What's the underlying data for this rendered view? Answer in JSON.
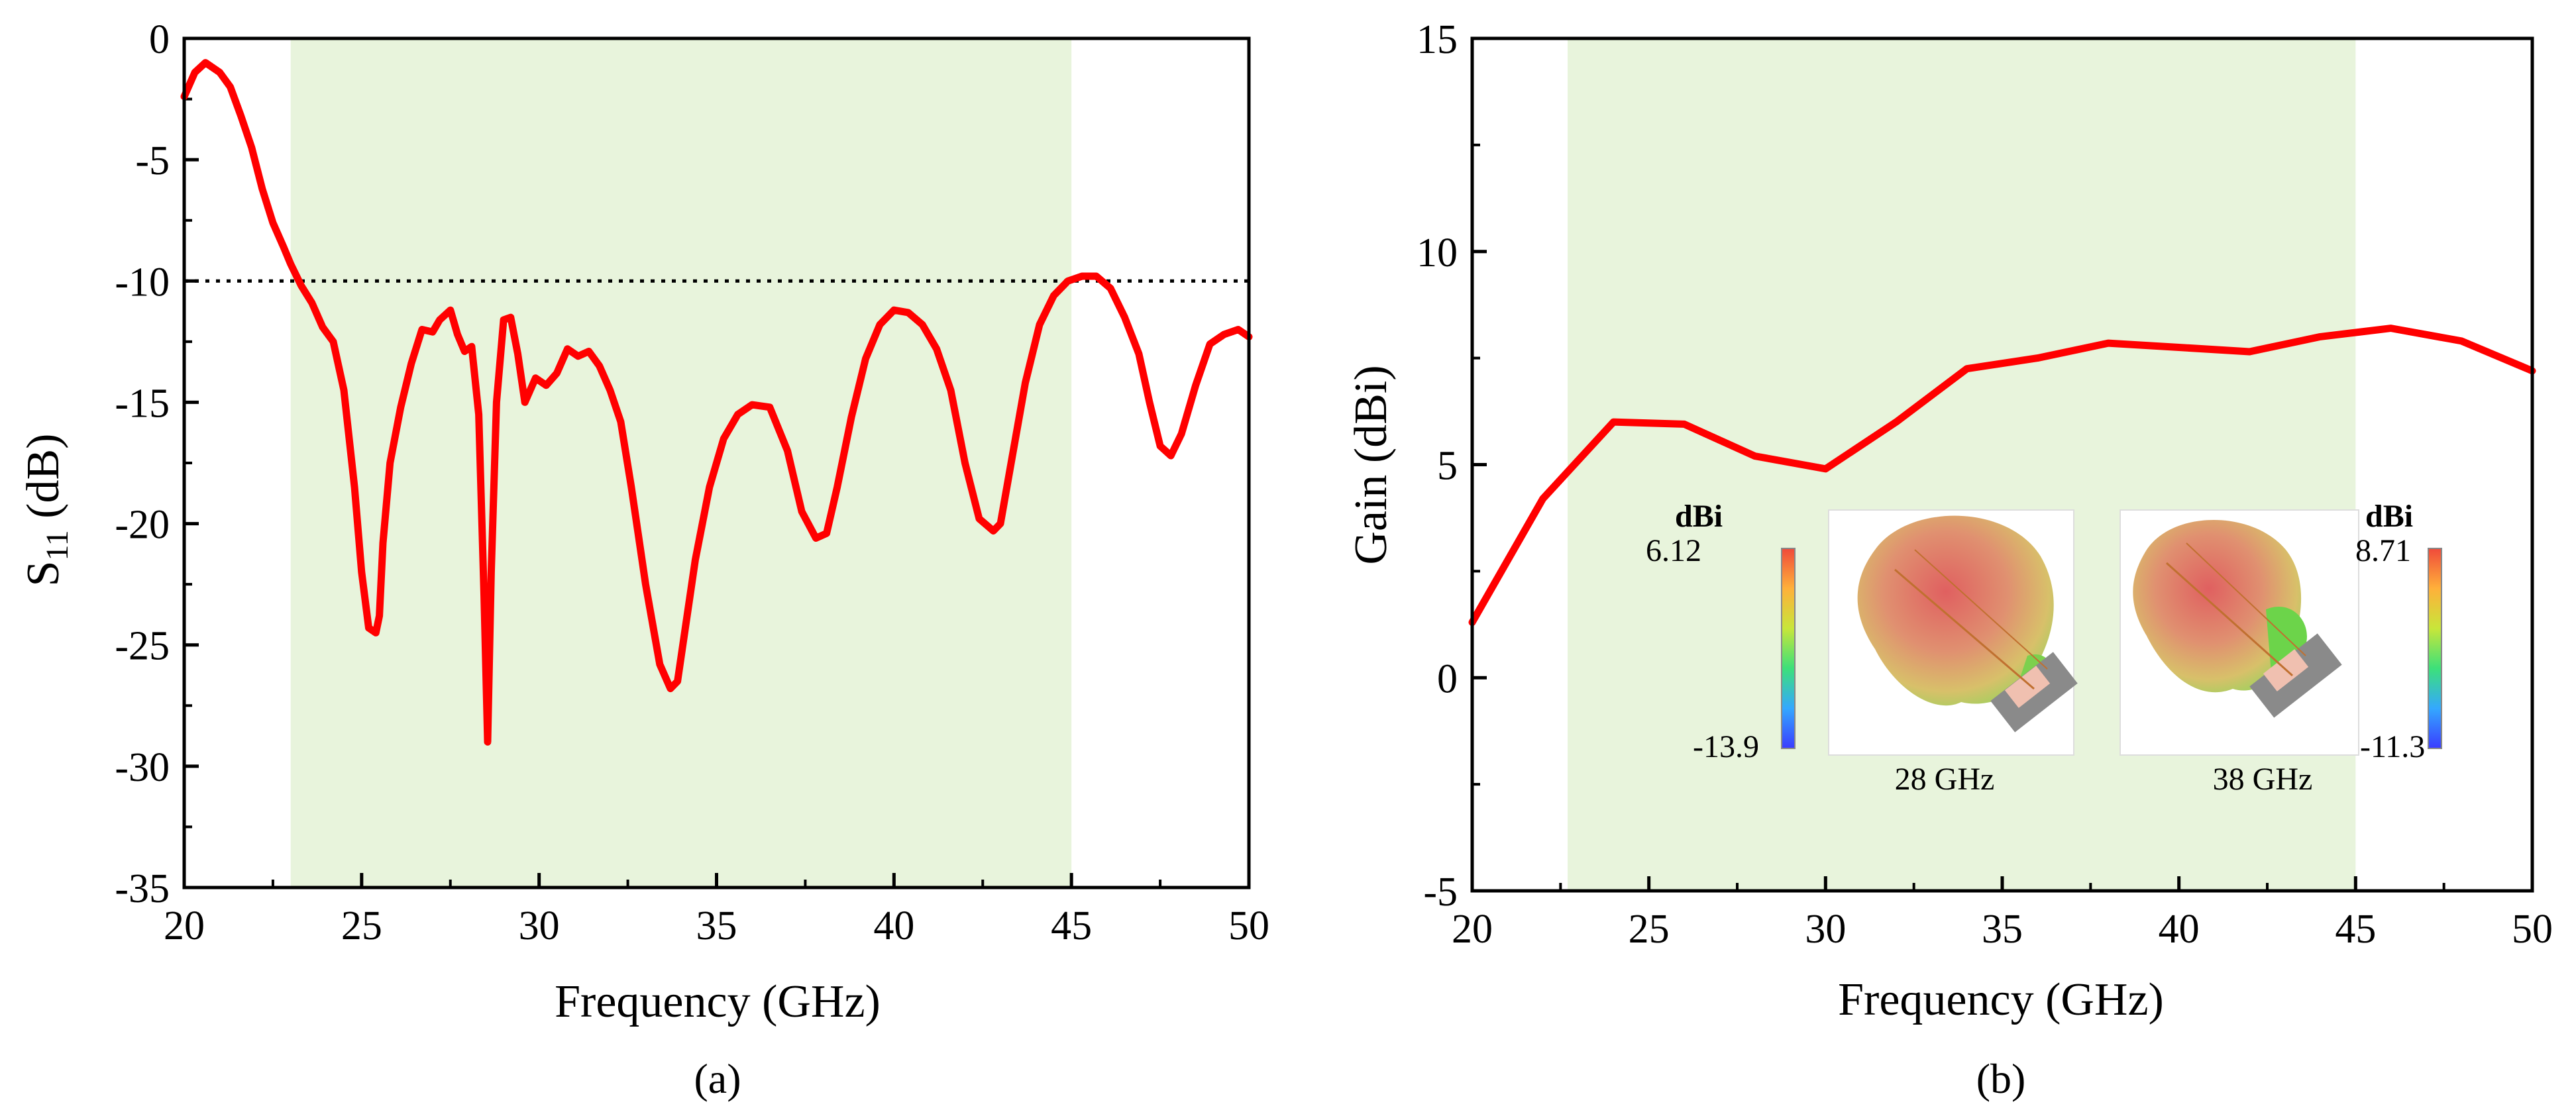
{
  "figure": {
    "panel_a_label": "(a)",
    "panel_b_label": "(b)"
  },
  "chart_data": [
    {
      "type": "line",
      "id": "s11",
      "title": "",
      "xlabel": "Frequency (GHz)",
      "ylabel_main": "S",
      "ylabel_sub": "11",
      "ylabel_unit": " (dB)",
      "xlim": [
        20,
        50
      ],
      "ylim": [
        -35,
        0
      ],
      "xticks": [
        20,
        25,
        30,
        35,
        40,
        45,
        50
      ],
      "xtick_labels": [
        "20",
        "25",
        "30",
        "35",
        "40",
        "45",
        "50"
      ],
      "yticks": [
        0,
        -5,
        -10,
        -15,
        -20,
        -25,
        -30,
        -35
      ],
      "ytick_labels": [
        "0",
        "-5",
        "-10",
        "-15",
        "-20",
        "-25",
        "-30",
        "-35"
      ],
      "shaded_band": [
        23,
        45
      ],
      "shade_color": "#e8f4dc",
      "threshold": -10,
      "line_color": "#ff0000",
      "series": [
        {
          "name": "S11",
          "x": [
            20.0,
            20.3,
            20.6,
            21.0,
            21.3,
            21.6,
            21.9,
            22.2,
            22.5,
            22.8,
            23.0,
            23.3,
            23.6,
            23.9,
            24.2,
            24.5,
            24.8,
            25.0,
            25.2,
            25.4,
            25.5,
            25.6,
            25.8,
            26.1,
            26.4,
            26.7,
            27.0,
            27.2,
            27.5,
            27.7,
            27.9,
            28.1,
            28.3,
            28.45,
            28.55,
            28.65,
            28.8,
            29.0,
            29.2,
            29.4,
            29.6,
            29.9,
            30.2,
            30.5,
            30.8,
            31.1,
            31.4,
            31.7,
            32.0,
            32.3,
            32.6,
            33.0,
            33.4,
            33.7,
            33.9,
            34.1,
            34.4,
            34.8,
            35.2,
            35.6,
            36.0,
            36.5,
            37.0,
            37.4,
            37.8,
            38.1,
            38.4,
            38.8,
            39.2,
            39.6,
            40.0,
            40.4,
            40.8,
            41.2,
            41.6,
            42.0,
            42.4,
            42.8,
            43.0,
            43.3,
            43.7,
            44.1,
            44.5,
            44.9,
            45.3,
            45.7,
            46.1,
            46.5,
            46.9,
            47.2,
            47.5,
            47.8,
            48.1,
            48.5,
            48.9,
            49.3,
            49.7,
            50.0
          ],
          "y": [
            -2.4,
            -1.4,
            -1.0,
            -1.4,
            -2.0,
            -3.2,
            -4.5,
            -6.2,
            -7.6,
            -8.6,
            -9.3,
            -10.2,
            -10.9,
            -11.9,
            -12.5,
            -14.5,
            -18.5,
            -22.0,
            -24.3,
            -24.5,
            -23.8,
            -20.8,
            -17.5,
            -15.2,
            -13.4,
            -12.0,
            -12.1,
            -11.6,
            -11.2,
            -12.2,
            -12.9,
            -12.7,
            -15.5,
            -23.0,
            -29.0,
            -22.0,
            -15.0,
            -11.6,
            -11.5,
            -13.0,
            -15.0,
            -14.0,
            -14.3,
            -13.8,
            -12.8,
            -13.1,
            -12.9,
            -13.5,
            -14.5,
            -15.8,
            -18.5,
            -22.5,
            -25.8,
            -26.8,
            -26.5,
            -24.5,
            -21.5,
            -18.5,
            -16.5,
            -15.5,
            -15.1,
            -15.2,
            -17.0,
            -19.5,
            -20.6,
            -20.4,
            -18.5,
            -15.6,
            -13.2,
            -11.8,
            -11.2,
            -11.3,
            -11.8,
            -12.8,
            -14.5,
            -17.5,
            -19.8,
            -20.3,
            -20.0,
            -17.5,
            -14.2,
            -11.8,
            -10.6,
            -10.0,
            -9.8,
            -9.8,
            -10.3,
            -11.5,
            -13.0,
            -15.0,
            -16.8,
            -17.2,
            -16.3,
            -14.3,
            -12.6,
            -12.2,
            -12.0,
            -12.3
          ]
        }
      ]
    },
    {
      "type": "line",
      "id": "gain",
      "title": "",
      "xlabel": "Frequency (GHz)",
      "ylabel": "Gain (dBi)",
      "xlim": [
        20,
        50
      ],
      "ylim": [
        -5,
        15
      ],
      "xticks": [
        20,
        25,
        30,
        35,
        40,
        45,
        50
      ],
      "xtick_labels": [
        "20",
        "25",
        "30",
        "35",
        "40",
        "45",
        "50"
      ],
      "yticks": [
        15,
        10,
        5,
        0,
        -5
      ],
      "ytick_labels": [
        "15",
        "10",
        "5",
        "0",
        "-5"
      ],
      "shaded_band": [
        22.7,
        45
      ],
      "shade_color": "#e8f4dc",
      "line_color": "#ff0000",
      "series": [
        {
          "name": "Gain",
          "x": [
            20,
            22,
            24,
            26,
            28,
            30,
            32,
            34,
            36,
            38,
            40,
            42,
            44,
            46,
            48,
            50
          ],
          "y": [
            1.3,
            4.2,
            6.0,
            5.95,
            5.2,
            4.9,
            6.0,
            7.25,
            7.5,
            7.85,
            7.75,
            7.65,
            8.0,
            8.2,
            7.9,
            7.2
          ]
        }
      ],
      "insets": [
        {
          "unit_label": "dBi",
          "max_label": "6.12",
          "min_label": "-13.9",
          "caption": "28 GHz"
        },
        {
          "unit_label": "dBi",
          "max_label": "8.71",
          "min_label": "-11.3",
          "caption": "38 GHz"
        }
      ]
    }
  ]
}
